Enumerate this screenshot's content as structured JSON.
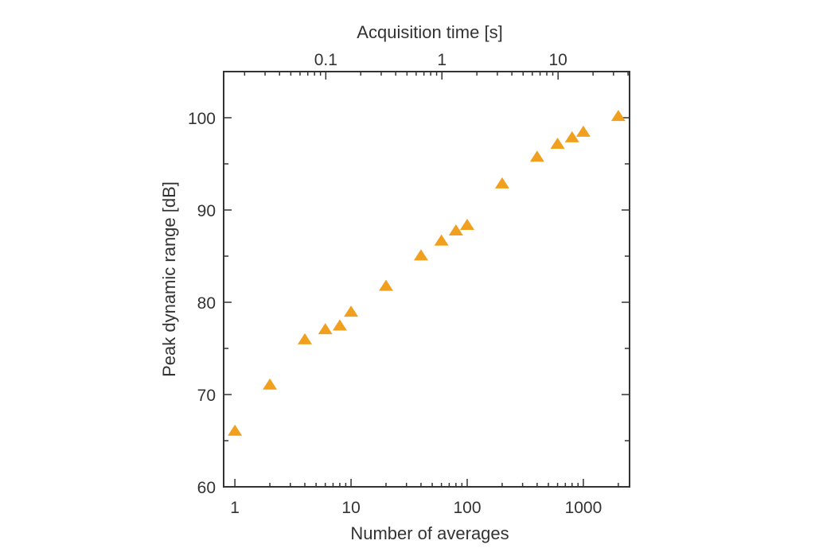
{
  "chart_data": {
    "type": "scatter",
    "title": "",
    "xlabel": "Number of averages",
    "ylabel": "Peak dynamic range [dB]",
    "x2label": "Acquisition time [s]",
    "x_scale": "log",
    "xlim": [
      0.8,
      2500
    ],
    "ylim": [
      60,
      105
    ],
    "x_ticks": [
      1,
      10,
      100,
      1000
    ],
    "x_tick_labels": [
      "1",
      "10",
      "100",
      "1000"
    ],
    "y_ticks": [
      60,
      70,
      80,
      90,
      100
    ],
    "y_tick_labels": [
      "60",
      "70",
      "80",
      "90",
      "100"
    ],
    "x2_scale": "log",
    "x2_ticks": [
      0.1,
      1,
      10
    ],
    "x2_tick_labels": [
      "0.1",
      "1",
      "10"
    ],
    "x2_seconds_per_average": 0.0165,
    "marker": "triangle",
    "color": "#f0a01e",
    "grid": false,
    "series": [
      {
        "x": [
          1,
          2,
          4,
          6,
          8,
          10,
          20,
          40,
          60,
          80,
          100,
          200,
          400,
          600,
          800,
          1000,
          2000
        ],
        "y": [
          66.0,
          71.0,
          75.9,
          77.0,
          77.4,
          78.9,
          81.7,
          85.0,
          86.6,
          87.7,
          88.3,
          92.8,
          95.7,
          97.1,
          97.8,
          98.4,
          100.1
        ]
      }
    ]
  }
}
